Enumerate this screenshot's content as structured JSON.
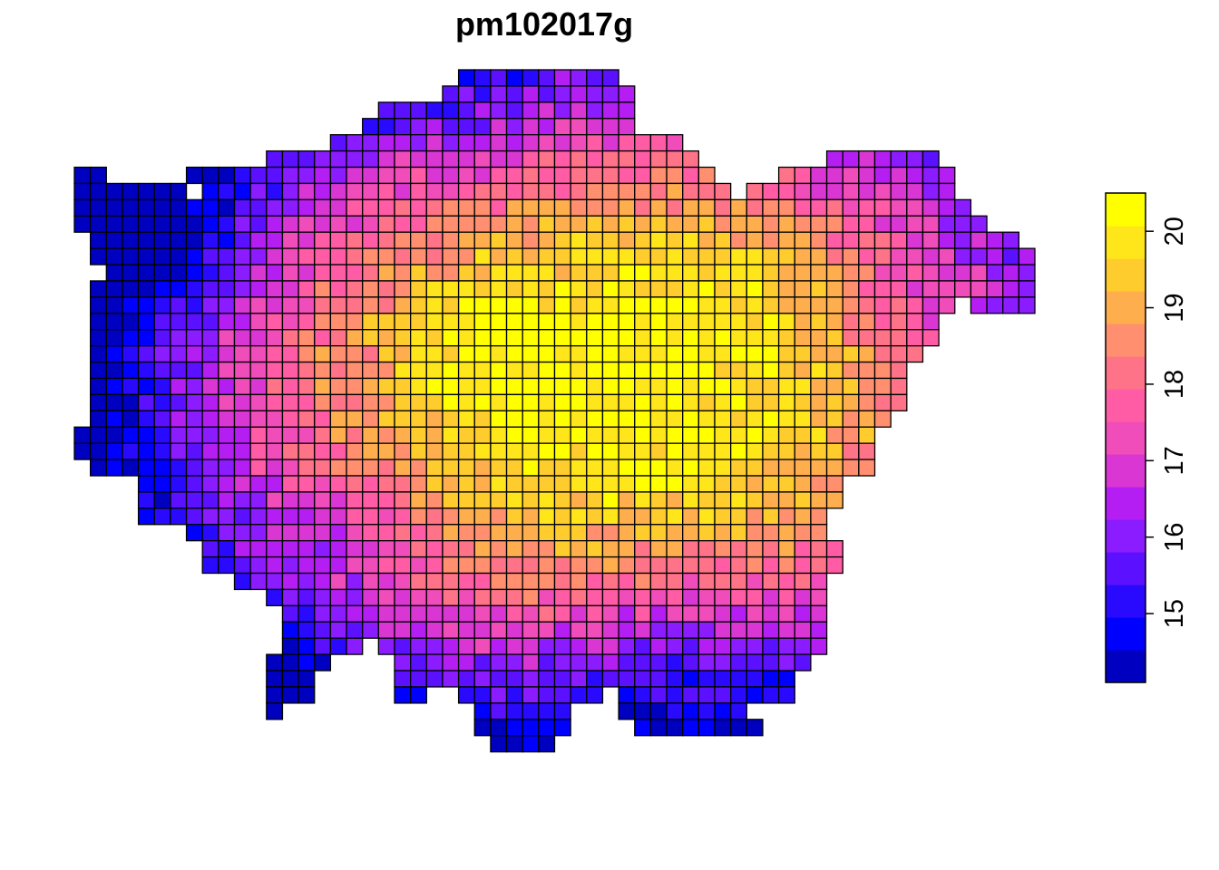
{
  "chart_data": {
    "type": "heatmap",
    "title": "pm102017g",
    "xlabel": "",
    "ylabel": "",
    "grid": false,
    "legend_position": "right",
    "color_scale": {
      "range": [
        14.1,
        20.5
      ],
      "ticks": [
        15,
        16,
        17,
        18,
        19,
        20
      ],
      "colors": [
        "#0000C0",
        "#0000FF",
        "#2A0AFF",
        "#5B10FF",
        "#8A1CFF",
        "#B51EF2",
        "#DA36D4",
        "#F04CBA",
        "#FF5CA5",
        "#FF7388",
        "#FF8F6E",
        "#FFAE4E",
        "#FFCC2E",
        "#FFE61A",
        "#FFFF00"
      ]
    },
    "grid_ranges": [
      [
        [
          24,
          33
        ]
      ],
      [
        [
          23,
          34
        ]
      ],
      [
        [
          19,
          34
        ]
      ],
      [
        [
          18,
          34
        ]
      ],
      [
        [
          16,
          37
        ]
      ],
      [
        [
          12,
          38
        ],
        [
          47,
          53
        ]
      ],
      [
        [
          0,
          1
        ],
        [
          7,
          39
        ],
        [
          44,
          54
        ]
      ],
      [
        [
          0,
          6
        ],
        [
          8,
          40
        ],
        [
          42,
          54
        ]
      ],
      [
        [
          0,
          55
        ]
      ],
      [
        [
          0,
          56
        ]
      ],
      [
        [
          1,
          58
        ]
      ],
      [
        [
          1,
          59
        ]
      ],
      [
        [
          2,
          59
        ]
      ],
      [
        [
          1,
          59
        ]
      ],
      [
        [
          1,
          54
        ],
        [
          56,
          59
        ]
      ],
      [
        [
          1,
          53
        ]
      ],
      [
        [
          1,
          53
        ]
      ],
      [
        [
          1,
          52
        ]
      ],
      [
        [
          1,
          51
        ]
      ],
      [
        [
          1,
          51
        ]
      ],
      [
        [
          1,
          51
        ]
      ],
      [
        [
          1,
          50
        ]
      ],
      [
        [
          0,
          49
        ]
      ],
      [
        [
          0,
          49
        ]
      ],
      [
        [
          1,
          49
        ]
      ],
      [
        [
          4,
          47
        ]
      ],
      [
        [
          4,
          47
        ]
      ],
      [
        [
          4,
          46
        ]
      ],
      [
        [
          7,
          46
        ]
      ],
      [
        [
          8,
          47
        ]
      ],
      [
        [
          8,
          47
        ]
      ],
      [
        [
          10,
          46
        ]
      ],
      [
        [
          12,
          46
        ]
      ],
      [
        [
          13,
          46
        ]
      ],
      [
        [
          13,
          46
        ]
      ],
      [
        [
          13,
          17
        ],
        [
          19,
          46
        ]
      ],
      [
        [
          12,
          15
        ],
        [
          20,
          45
        ]
      ],
      [
        [
          12,
          14
        ],
        [
          20,
          44
        ]
      ],
      [
        [
          12,
          14
        ],
        [
          20,
          21
        ],
        [
          24,
          32
        ],
        [
          34,
          44
        ]
      ],
      [
        [
          12,
          12
        ],
        [
          25,
          30
        ],
        [
          34,
          41
        ]
      ],
      [
        [
          25,
          30
        ],
        [
          35,
          37
        ],
        [
          38,
          42
        ]
      ],
      [
        [
          26,
          29
        ]
      ]
    ],
    "color_field": "smooth gradient: highest (19-20.4) in the central core, 17-18.5 in the surrounding ring, lowest (14.1-15.5) along the north-west and southern edges",
    "value_range_shown": [
      14.1,
      20.4
    ]
  }
}
